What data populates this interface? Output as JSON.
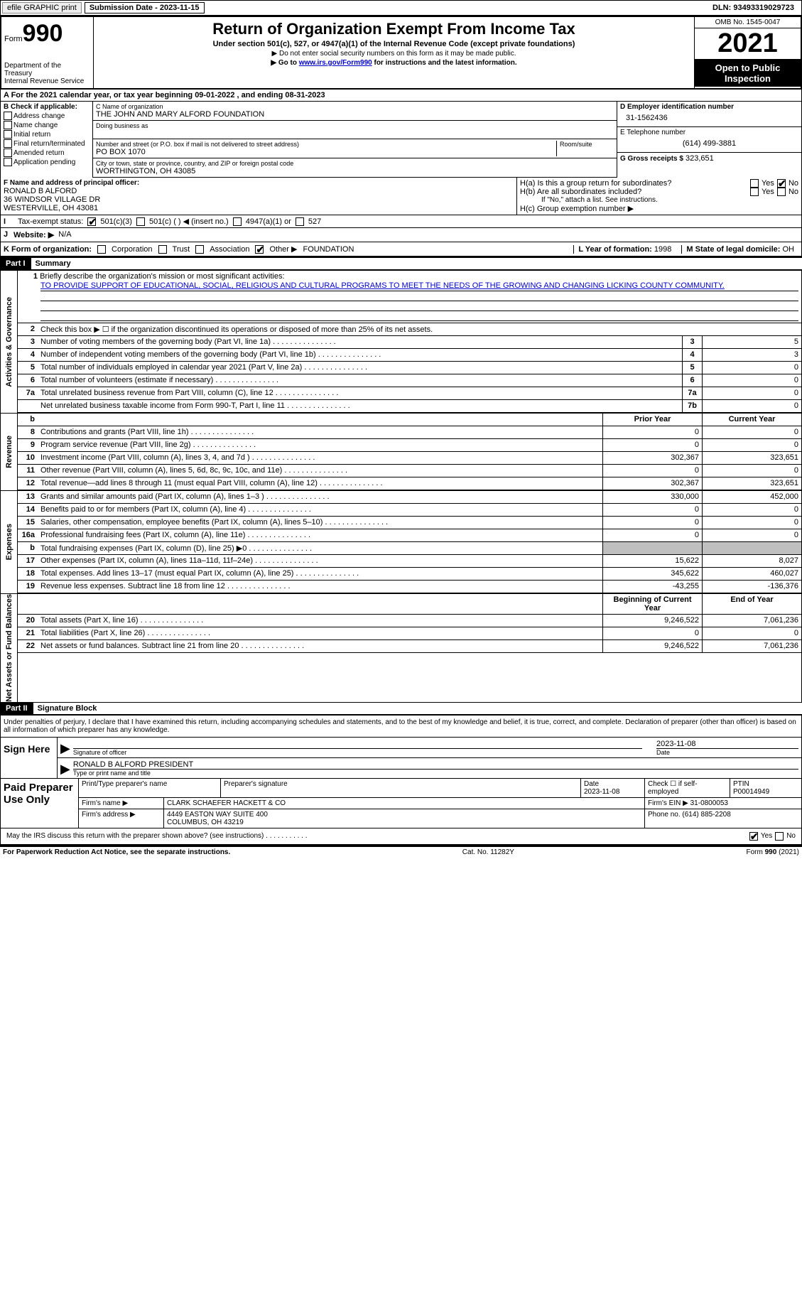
{
  "topbar": {
    "efile": "efile GRAPHIC print",
    "submission": "Submission Date - 2023-11-15",
    "dln": "DLN: 93493319029723"
  },
  "header": {
    "form_label": "Form",
    "form_num": "990",
    "dept": "Department of the Treasury",
    "irs": "Internal Revenue Service",
    "title": "Return of Organization Exempt From Income Tax",
    "sub": "Under section 501(c), 527, or 4947(a)(1) of the Internal Revenue Code (except private foundations)",
    "note1": "▶ Do not enter social security numbers on this form as it may be made public.",
    "note2_pre": "▶ Go to ",
    "note2_link": "www.irs.gov/Form990",
    "note2_post": " for instructions and the latest information.",
    "omb": "OMB No. 1545-0047",
    "year": "2021",
    "inspect": "Open to Public Inspection"
  },
  "sectionA": {
    "period": "A For the 2021 calendar year, or tax year beginning 09-01-2022   , and ending 08-31-2023",
    "b_label": "B Check if applicable:",
    "b_items": [
      "Address change",
      "Name change",
      "Initial return",
      "Final return/terminated",
      "Amended return",
      "Application pending"
    ],
    "c_name_lbl": "C Name of organization",
    "c_name": "THE JOHN AND MARY ALFORD FOUNDATION",
    "dba_lbl": "Doing business as",
    "street_lbl": "Number and street (or P.O. box if mail is not delivered to street address)",
    "room_lbl": "Room/suite",
    "street": "PO BOX 1070",
    "city_lbl": "City or town, state or province, country, and ZIP or foreign postal code",
    "city": "WORTHINGTON, OH  43085",
    "d_ein_lbl": "D Employer identification number",
    "d_ein": "31-1562436",
    "e_tel_lbl": "E Telephone number",
    "e_tel": "(614) 499-3881",
    "g_gross_lbl": "G Gross receipts $",
    "g_gross": "323,651",
    "f_lbl": "F  Name and address of principal officer:",
    "f_name": "RONALD B ALFORD",
    "f_addr1": "36 WINDSOR VILLAGE DR",
    "f_addr2": "WESTERVILLE, OH  43081",
    "ha": "H(a)  Is this a group return for subordinates?",
    "hb": "H(b)  Are all subordinates included?",
    "hb_note": "If \"No,\" attach a list. See instructions.",
    "hc": "H(c)  Group exemption number ▶",
    "i_lbl": "Tax-exempt status:",
    "i_501c3": "501(c)(3)",
    "i_501c": "501(c) (  ) ◀ (insert no.)",
    "i_4947": "4947(a)(1) or",
    "i_527": "527",
    "j_lbl": "Website: ▶",
    "j_val": "N/A",
    "k_lbl": "K Form of organization:",
    "k_corp": "Corporation",
    "k_trust": "Trust",
    "k_assoc": "Association",
    "k_other": "Other ▶",
    "k_other_val": "FOUNDATION",
    "l_lbl": "L Year of formation:",
    "l_val": "1998",
    "m_lbl": "M State of legal domicile:",
    "m_val": "OH"
  },
  "part1": {
    "header": "Part I",
    "title": "Summary",
    "line1_lbl": "Briefly describe the organization's mission or most significant activities:",
    "line1_text": "TO PROVIDE SUPPORT OF EDUCATIONAL, SOCIAL, RELIGIOUS AND CULTURAL PROGRAMS TO MEET THE NEEDS OF THE GROWING AND CHANGING LICKING COUNTY COMMUNITY.",
    "line2": "Check this box ▶ ☐  if the organization discontinued its operations or disposed of more than 25% of its net assets.",
    "rows_ag": [
      {
        "n": "3",
        "d": "Number of voting members of the governing body (Part VI, line 1a)",
        "b": "3",
        "v": "5"
      },
      {
        "n": "4",
        "d": "Number of independent voting members of the governing body (Part VI, line 1b)",
        "b": "4",
        "v": "3"
      },
      {
        "n": "5",
        "d": "Total number of individuals employed in calendar year 2021 (Part V, line 2a)",
        "b": "5",
        "v": "0"
      },
      {
        "n": "6",
        "d": "Total number of volunteers (estimate if necessary)",
        "b": "6",
        "v": "0"
      },
      {
        "n": "7a",
        "d": "Total unrelated business revenue from Part VIII, column (C), line 12",
        "b": "7a",
        "v": "0"
      },
      {
        "n": "",
        "d": "Net unrelated business taxable income from Form 990-T, Part I, line 11",
        "b": "7b",
        "v": "0"
      }
    ],
    "col_prior": "Prior Year",
    "col_current": "Current Year",
    "rows_rev": [
      {
        "n": "8",
        "d": "Contributions and grants (Part VIII, line 1h)",
        "p": "0",
        "c": "0"
      },
      {
        "n": "9",
        "d": "Program service revenue (Part VIII, line 2g)",
        "p": "0",
        "c": "0"
      },
      {
        "n": "10",
        "d": "Investment income (Part VIII, column (A), lines 3, 4, and 7d )",
        "p": "302,367",
        "c": "323,651"
      },
      {
        "n": "11",
        "d": "Other revenue (Part VIII, column (A), lines 5, 6d, 8c, 9c, 10c, and 11e)",
        "p": "0",
        "c": "0"
      },
      {
        "n": "12",
        "d": "Total revenue—add lines 8 through 11 (must equal Part VIII, column (A), line 12)",
        "p": "302,367",
        "c": "323,651"
      }
    ],
    "rows_exp": [
      {
        "n": "13",
        "d": "Grants and similar amounts paid (Part IX, column (A), lines 1–3 )",
        "p": "330,000",
        "c": "452,000"
      },
      {
        "n": "14",
        "d": "Benefits paid to or for members (Part IX, column (A), line 4)",
        "p": "0",
        "c": "0"
      },
      {
        "n": "15",
        "d": "Salaries, other compensation, employee benefits (Part IX, column (A), lines 5–10)",
        "p": "0",
        "c": "0"
      },
      {
        "n": "16a",
        "d": "Professional fundraising fees (Part IX, column (A), line 11e)",
        "p": "0",
        "c": "0"
      },
      {
        "n": "b",
        "d": "Total fundraising expenses (Part IX, column (D), line 25) ▶0",
        "p": "",
        "c": "",
        "grey": true
      },
      {
        "n": "17",
        "d": "Other expenses (Part IX, column (A), lines 11a–11d, 11f–24e)",
        "p": "15,622",
        "c": "8,027"
      },
      {
        "n": "18",
        "d": "Total expenses. Add lines 13–17 (must equal Part IX, column (A), line 25)",
        "p": "345,622",
        "c": "460,027"
      },
      {
        "n": "19",
        "d": "Revenue less expenses. Subtract line 18 from line 12",
        "p": "-43,255",
        "c": "-136,376"
      }
    ],
    "col_begin": "Beginning of Current Year",
    "col_end": "End of Year",
    "rows_net": [
      {
        "n": "20",
        "d": "Total assets (Part X, line 16)",
        "p": "9,246,522",
        "c": "7,061,236"
      },
      {
        "n": "21",
        "d": "Total liabilities (Part X, line 26)",
        "p": "0",
        "c": "0"
      },
      {
        "n": "22",
        "d": "Net assets or fund balances. Subtract line 21 from line 20",
        "p": "9,246,522",
        "c": "7,061,236"
      }
    ],
    "tab_ag": "Activities & Governance",
    "tab_rev": "Revenue",
    "tab_exp": "Expenses",
    "tab_net": "Net Assets or Fund Balances"
  },
  "part2": {
    "header": "Part II",
    "title": "Signature Block",
    "decl": "Under penalties of perjury, I declare that I have examined this return, including accompanying schedules and statements, and to the best of my knowledge and belief, it is true, correct, and complete. Declaration of preparer (other than officer) is based on all information of which preparer has any knowledge.",
    "sign_here": "Sign Here",
    "sig_officer": "Signature of officer",
    "sig_date": "2023-11-08",
    "date_lbl": "Date",
    "officer_name": "RONALD B ALFORD  PRESIDENT",
    "name_title_lbl": "Type or print name and title",
    "paid": "Paid Preparer Use Only",
    "prep_name_lbl": "Print/Type preparer's name",
    "prep_sig_lbl": "Preparer's signature",
    "prep_date": "2023-11-08",
    "prep_check": "Check ☐ if self-employed",
    "ptin_lbl": "PTIN",
    "ptin": "P00014949",
    "firm_name_lbl": "Firm's name    ▶",
    "firm_name": "CLARK SCHAEFER HACKETT & CO",
    "firm_ein_lbl": "Firm's EIN ▶",
    "firm_ein": "31-0800053",
    "firm_addr_lbl": "Firm's address ▶",
    "firm_addr1": "4449 EASTON WAY SUITE 400",
    "firm_addr2": "COLUMBUS, OH  43219",
    "firm_phone_lbl": "Phone no.",
    "firm_phone": "(614) 885-2208",
    "discuss": "May the IRS discuss this return with the preparer shown above? (see instructions)"
  },
  "footer": {
    "notice": "For Paperwork Reduction Act Notice, see the separate instructions.",
    "cat": "Cat. No. 11282Y",
    "form": "Form 990 (2021)"
  },
  "yes": "Yes",
  "no": "No"
}
